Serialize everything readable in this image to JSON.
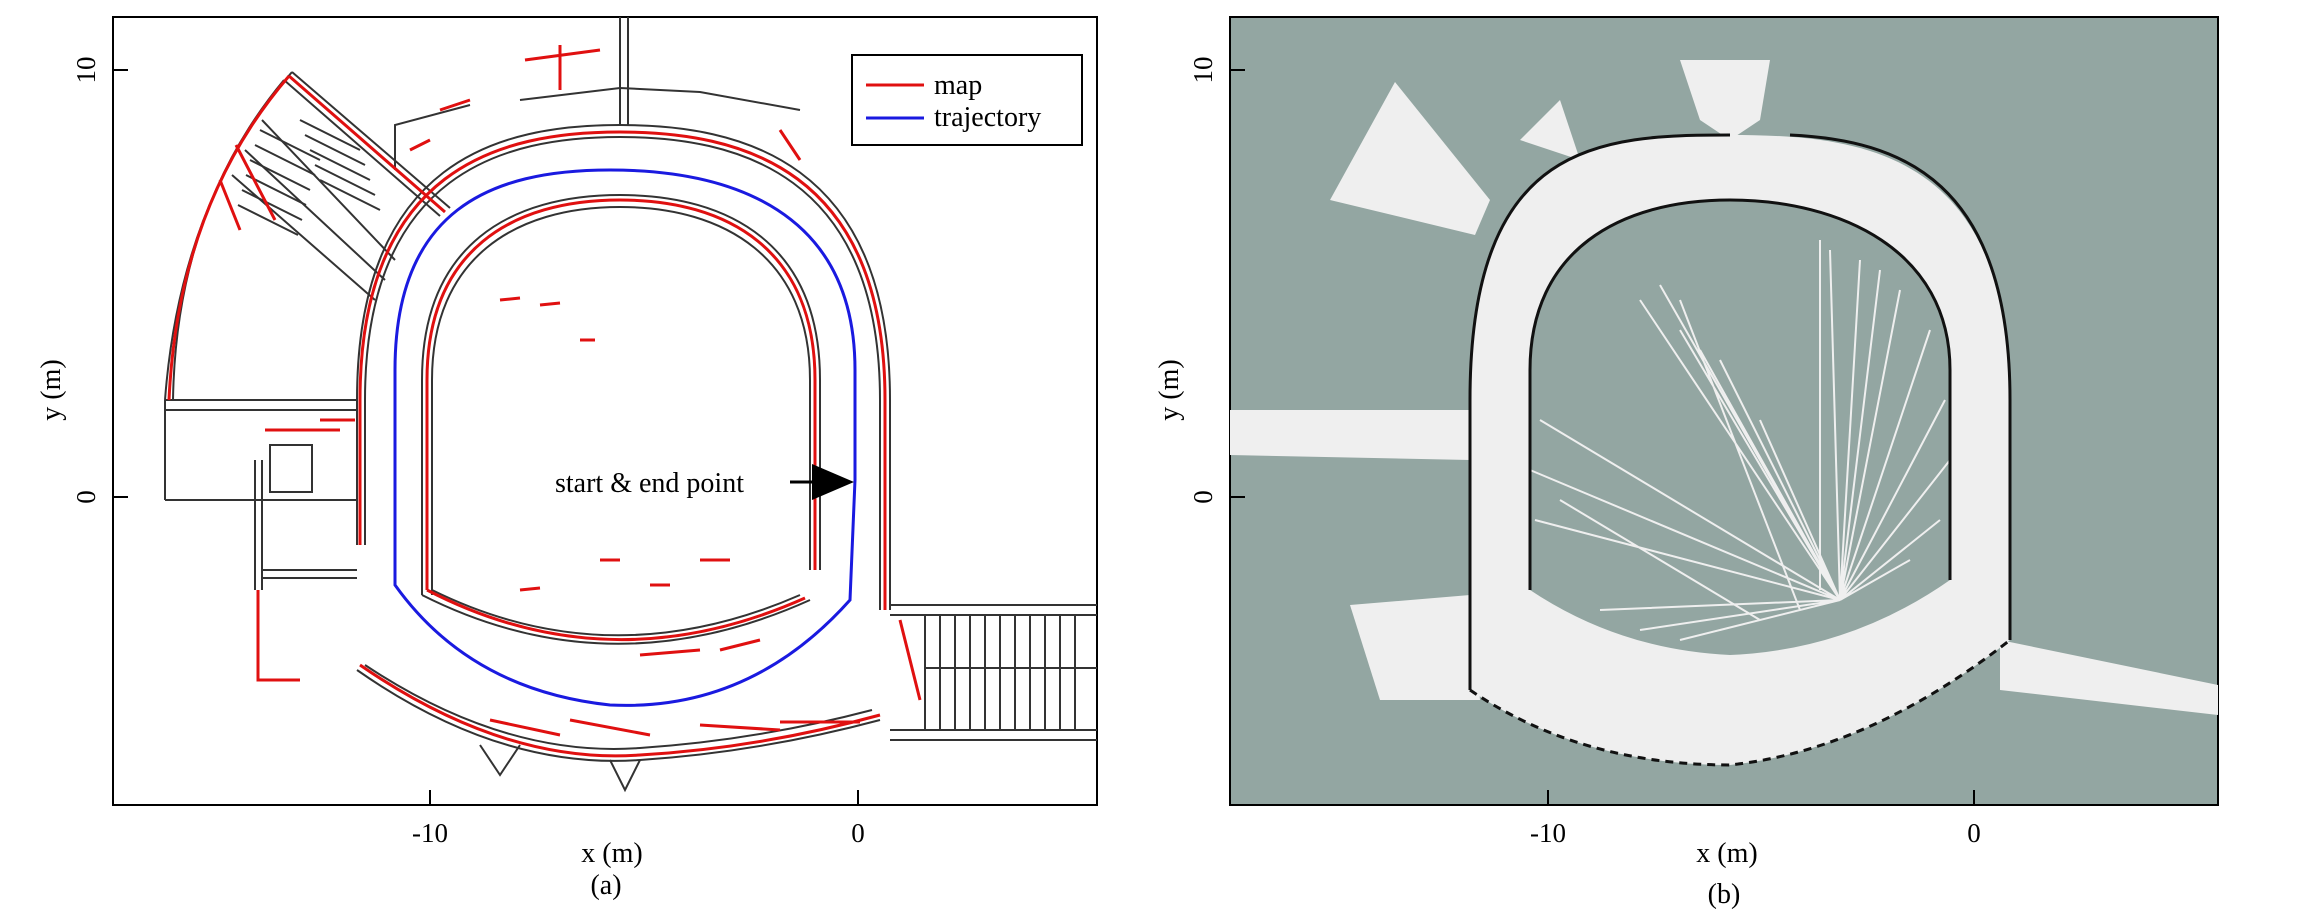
{
  "panel_a": {
    "xlabel": "x (m)",
    "ylabel": "y (m)",
    "x_ticks": [
      "-10",
      "0"
    ],
    "y_ticks": [
      "10",
      "0"
    ],
    "caption": "(a)",
    "legend": {
      "entries": [
        {
          "label": "map",
          "color": "#e01010"
        },
        {
          "label": "trajectory",
          "color": "#1a1ae0"
        }
      ],
      "placement": "top-right"
    },
    "annotation": "start & end point"
  },
  "panel_b": {
    "xlabel": "x (m)",
    "ylabel": "y (m)",
    "x_ticks": [
      "-10",
      "0"
    ],
    "y_ticks": [
      "10",
      "0"
    ],
    "caption": "(b)",
    "colors": {
      "unknown": "#93a6a2",
      "free": "#efefef",
      "occupied": "#111111"
    }
  },
  "colors": {
    "map": "#e01010",
    "trajectory": "#1a1ae0",
    "plan_lines": "#333333"
  }
}
